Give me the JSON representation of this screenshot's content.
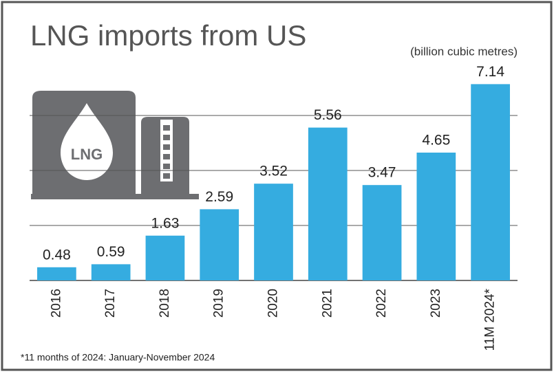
{
  "chart_data": {
    "type": "bar",
    "title": "LNG imports from US",
    "subtitle": "(billion cubic metres)",
    "note": "*11 months of 2024: January-November 2024",
    "icon_text": "LNG",
    "categories": [
      "2016",
      "2017",
      "2018",
      "2019",
      "2020",
      "2021",
      "2022",
      "2023",
      "11M 2024*"
    ],
    "values": [
      0.48,
      0.59,
      1.63,
      2.59,
      3.52,
      5.56,
      3.47,
      4.65,
      7.14
    ],
    "color": "#35ace0",
    "ylim": [
      0,
      8
    ],
    "yticks": [
      2,
      4,
      6
    ],
    "grid": true,
    "show_tick_labels": false
  }
}
